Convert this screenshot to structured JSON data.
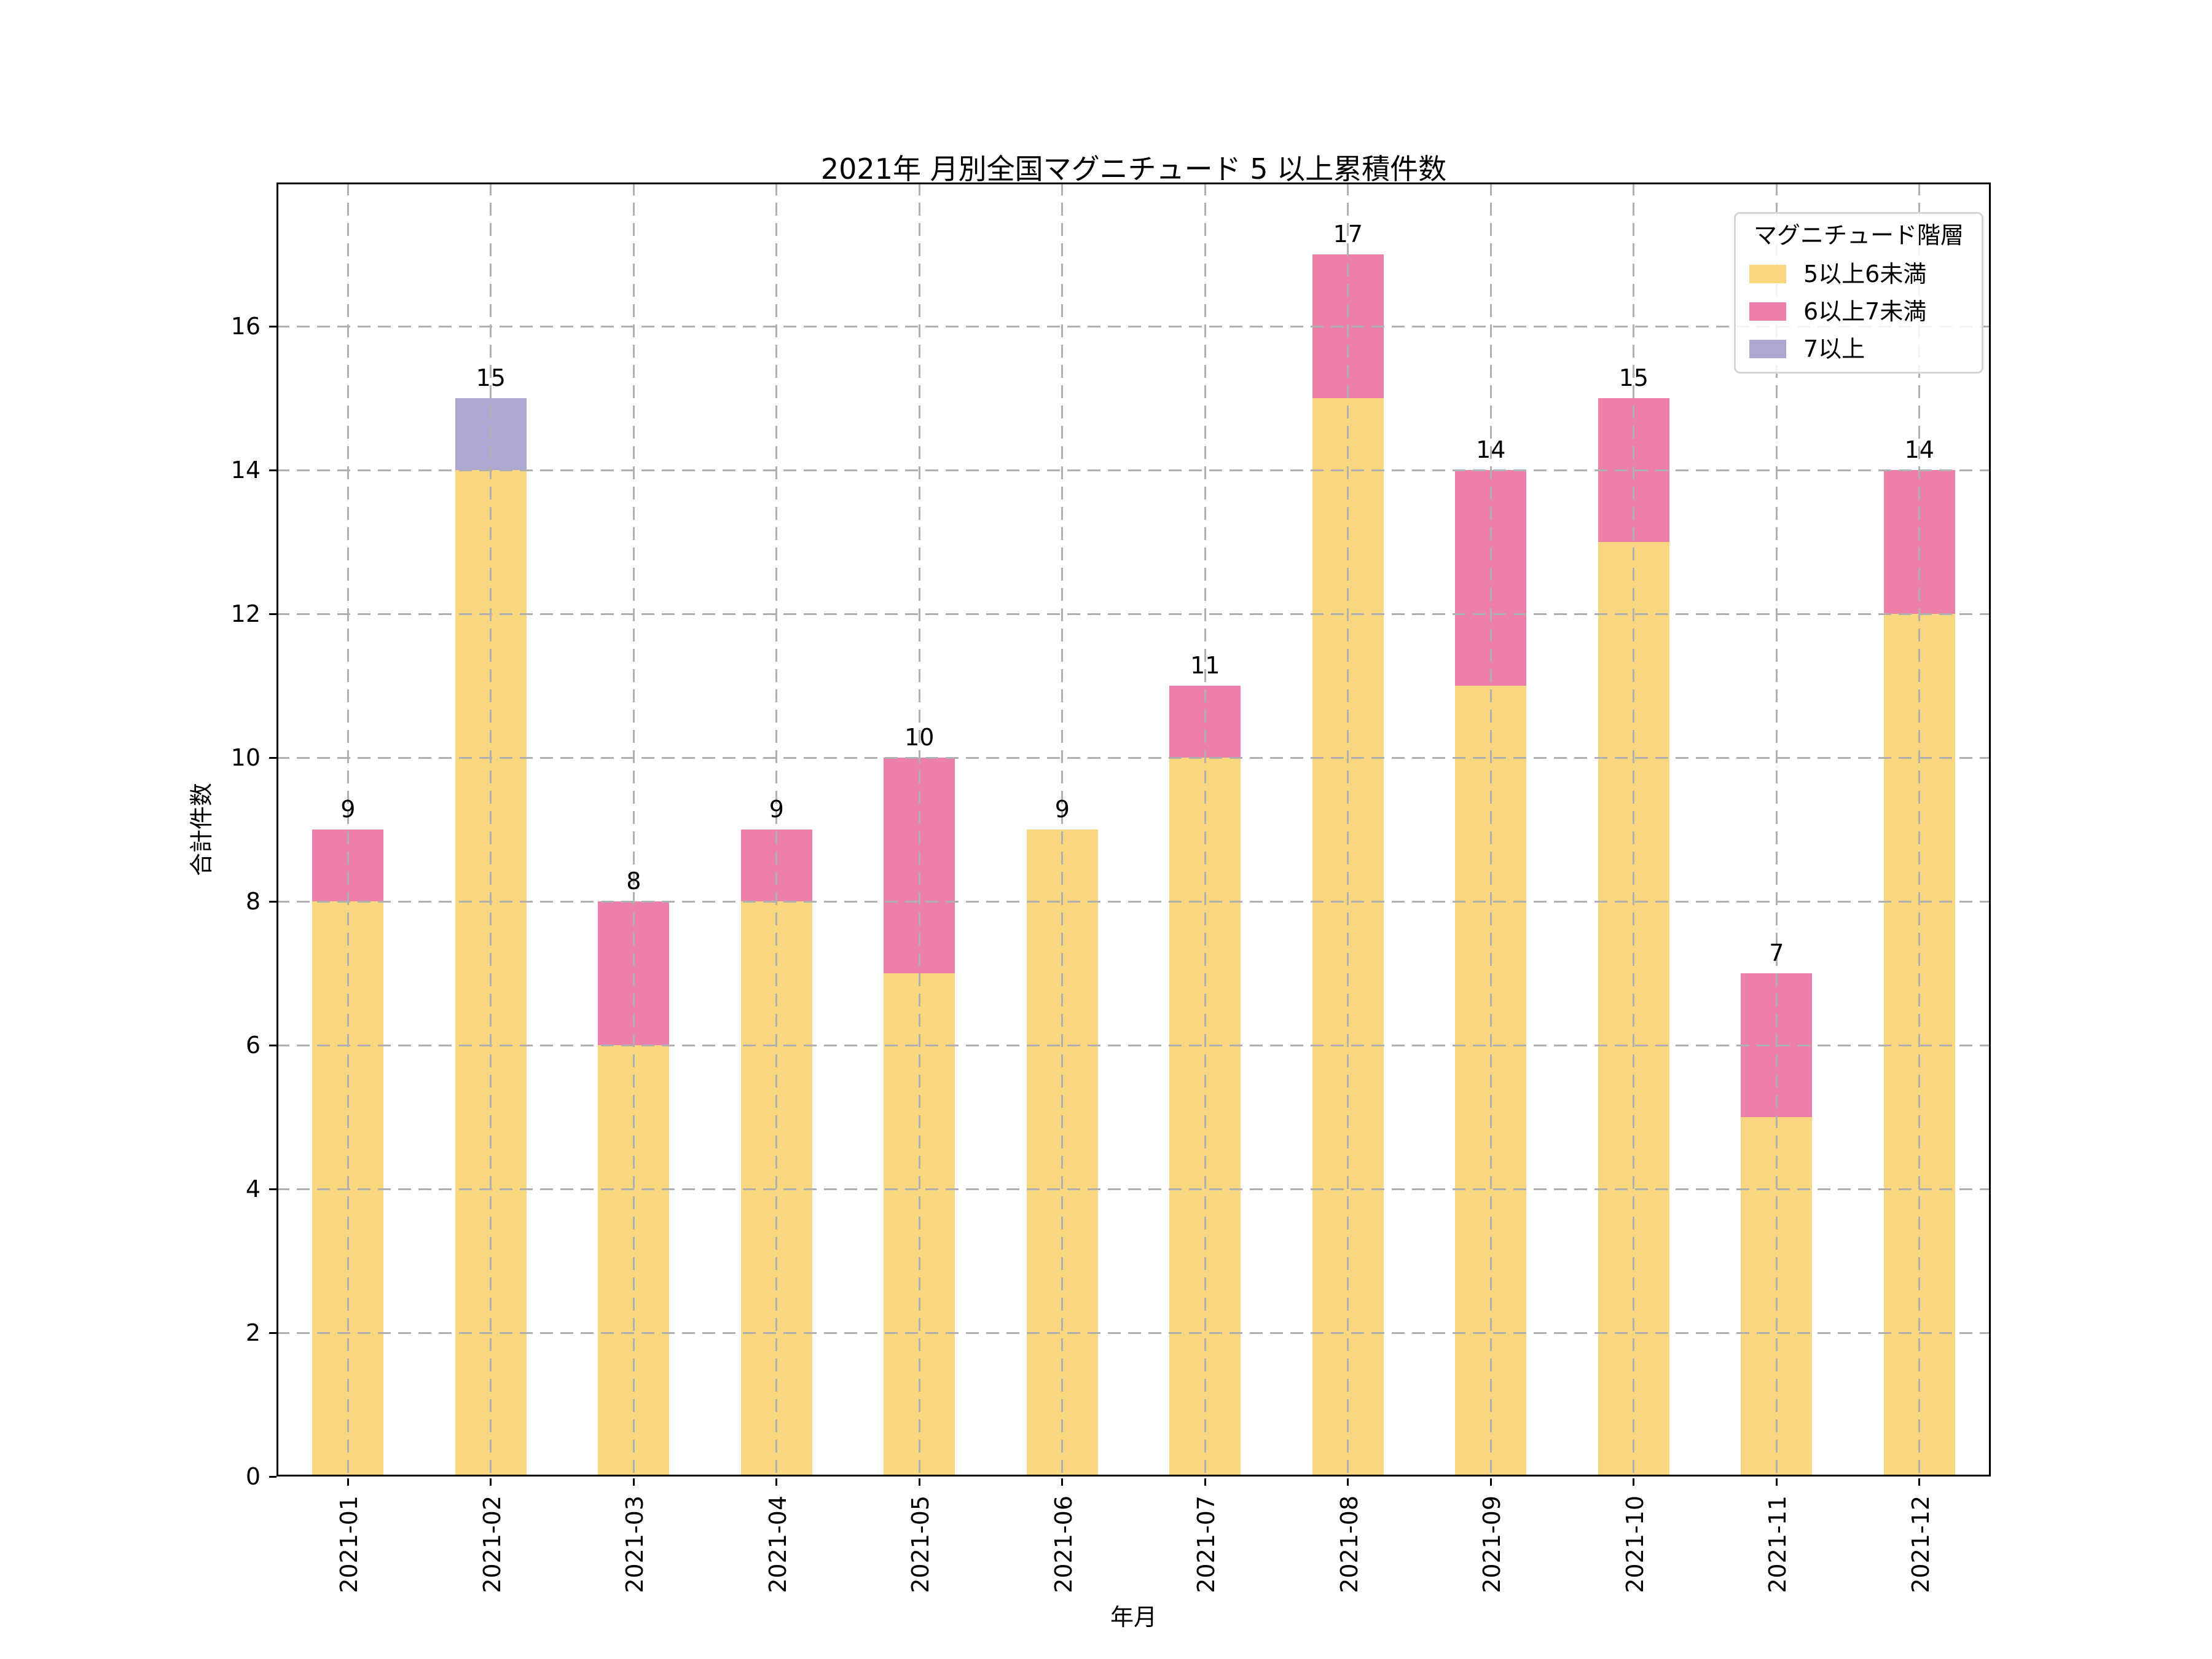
{
  "title": "2021年 月別全国マグニチュード 5 以上累積件数",
  "axes": {
    "x_label": "年月",
    "y_label": "合計件数"
  },
  "legend": {
    "title": "マグニチュード階層",
    "items": [
      {
        "label": "5以上6未満",
        "color": "#F9D77E"
      },
      {
        "label": "6以上7未満",
        "color": "#ED7FAB"
      },
      {
        "label": "7以上",
        "color": "#AEA7D1"
      }
    ]
  },
  "colors": {
    "grid": "#B0B0B0",
    "spine": "#000000",
    "background": "#FFFFFF",
    "text": "#000000"
  },
  "chart_data": {
    "type": "bar",
    "stacked": true,
    "title": "2021年 月別全国マグニチュード 5 以上累積件数",
    "xlabel": "年月",
    "ylabel": "合計件数",
    "ylim": [
      0,
      18
    ],
    "y_ticks": [
      0,
      2,
      4,
      6,
      8,
      10,
      12,
      14,
      16
    ],
    "grid": true,
    "grid_style": "dashed",
    "legend_position": "upper right",
    "categories": [
      "2021-01",
      "2021-02",
      "2021-03",
      "2021-04",
      "2021-05",
      "2021-06",
      "2021-07",
      "2021-08",
      "2021-09",
      "2021-10",
      "2021-11",
      "2021-12"
    ],
    "series": [
      {
        "name": "5以上6未満",
        "color": "#F9D77E",
        "values": [
          8,
          14,
          6,
          8,
          7,
          9,
          10,
          15,
          11,
          13,
          5,
          12
        ]
      },
      {
        "name": "6以上7未満",
        "color": "#ED7FAB",
        "values": [
          1,
          0,
          2,
          1,
          3,
          0,
          1,
          2,
          3,
          2,
          2,
          2
        ]
      },
      {
        "name": "7以上",
        "color": "#AEA7D1",
        "values": [
          0,
          1,
          0,
          0,
          0,
          0,
          0,
          0,
          0,
          0,
          0,
          0
        ]
      }
    ],
    "totals": [
      9,
      15,
      8,
      9,
      10,
      9,
      11,
      17,
      14,
      15,
      7,
      14
    ]
  }
}
